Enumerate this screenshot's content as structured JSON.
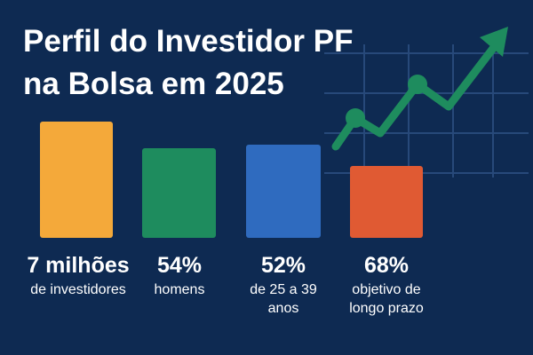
{
  "title": {
    "lines": [
      "Perfil do Investidor PF",
      "na Bolsa em 2025"
    ]
  },
  "stats": [
    {
      "value": "7 milhões",
      "label_lines": [
        "de investidores"
      ]
    },
    {
      "value": "54%",
      "label_lines": [
        "homens"
      ]
    },
    {
      "value": "52%",
      "label_lines": [
        "de 25 a 39",
        "anos"
      ]
    },
    {
      "value": "68%",
      "label_lines": [
        "objetivo de",
        "longo prazo"
      ]
    }
  ]
}
